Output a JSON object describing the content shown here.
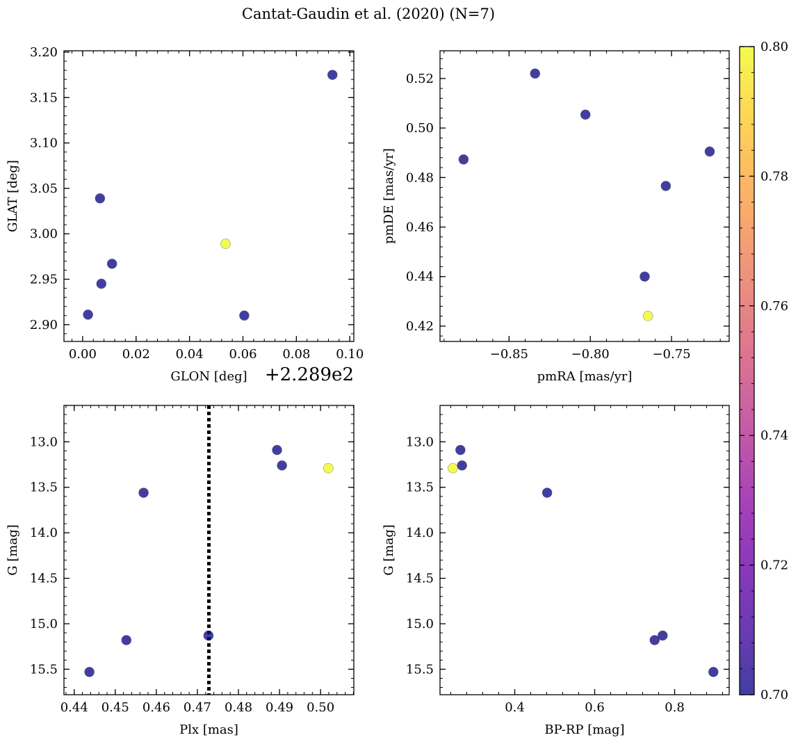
{
  "figure_title": "Cantat-Gaudin et al. (2020) (N=7)",
  "colorbar": {
    "min": 0.7,
    "max": 0.8,
    "ticks": [
      "0.70",
      "0.72",
      "0.74",
      "0.76",
      "0.78",
      "0.80"
    ],
    "colormap": "plasma"
  },
  "chart_data": [
    {
      "type": "scatter",
      "name": "glon-glat",
      "xlabel": "GLON [deg]",
      "ylabel": "GLAT [deg]",
      "x_offset_text": "+2.289e2",
      "xlim": [
        -0.007,
        0.1015
      ],
      "ylim": [
        2.8815,
        3.2015
      ],
      "xticks": [
        0.0,
        0.02,
        0.04,
        0.06,
        0.08,
        0.1
      ],
      "xtick_labels": [
        "0.00",
        "0.02",
        "0.04",
        "0.06",
        "0.08",
        "0.10"
      ],
      "yticks": [
        2.9,
        2.95,
        3.0,
        3.05,
        3.1,
        3.15,
        3.2
      ],
      "ytick_labels": [
        "2.90",
        "2.95",
        "3.00",
        "3.05",
        "3.10",
        "3.15",
        "3.20"
      ],
      "points": [
        {
          "x": 0.002,
          "y": 2.911,
          "c": 0.7
        },
        {
          "x": 0.0065,
          "y": 3.039,
          "c": 0.7
        },
        {
          "x": 0.007,
          "y": 2.945,
          "c": 0.7
        },
        {
          "x": 0.011,
          "y": 2.967,
          "c": 0.7
        },
        {
          "x": 0.0535,
          "y": 2.989,
          "c": 0.8
        },
        {
          "x": 0.0605,
          "y": 2.91,
          "c": 0.7
        },
        {
          "x": 0.0935,
          "y": 3.175,
          "c": 0.7
        }
      ]
    },
    {
      "type": "scatter",
      "name": "pm",
      "xlabel": "pmRA [mas/yr]",
      "ylabel": "pmDE [mas/yr]",
      "xlim": [
        -0.8925,
        -0.7145
      ],
      "ylim": [
        0.4138,
        0.5312
      ],
      "xticks": [
        -0.85,
        -0.8,
        -0.75
      ],
      "xtick_labels": [
        "−0.85",
        "−0.80",
        "−0.75"
      ],
      "yticks": [
        0.42,
        0.44,
        0.46,
        0.48,
        0.5,
        0.52
      ],
      "ytick_labels": [
        "0.42",
        "0.44",
        "0.46",
        "0.48",
        "0.50",
        "0.52"
      ],
      "points": [
        {
          "x": -0.878,
          "y": 0.4873,
          "c": 0.7
        },
        {
          "x": -0.834,
          "y": 0.522,
          "c": 0.7
        },
        {
          "x": -0.803,
          "y": 0.5054,
          "c": 0.7
        },
        {
          "x": -0.7535,
          "y": 0.4766,
          "c": 0.7
        },
        {
          "x": -0.7665,
          "y": 0.44,
          "c": 0.7
        },
        {
          "x": -0.7645,
          "y": 0.4241,
          "c": 0.8
        },
        {
          "x": -0.7265,
          "y": 0.4905,
          "c": 0.7
        }
      ]
    },
    {
      "type": "scatter",
      "name": "plx-g",
      "xlabel": "Plx [mas]",
      "ylabel": "G [mag]",
      "xlim": [
        0.4375,
        0.5081
      ],
      "ylim": [
        15.78,
        12.6
      ],
      "y_inverted": true,
      "vline_x": 0.4728,
      "xticks": [
        0.44,
        0.45,
        0.46,
        0.47,
        0.48,
        0.49,
        0.5
      ],
      "xtick_labels": [
        "0.44",
        "0.45",
        "0.46",
        "0.47",
        "0.48",
        "0.49",
        "0.50"
      ],
      "yticks": [
        13.0,
        13.5,
        14.0,
        14.5,
        15.0,
        15.5
      ],
      "ytick_labels": [
        "13.0",
        "13.5",
        "14.0",
        "14.5",
        "15.0",
        "15.5"
      ],
      "points": [
        {
          "x": 0.4437,
          "y": 15.53,
          "c": 0.7
        },
        {
          "x": 0.4527,
          "y": 15.18,
          "c": 0.7
        },
        {
          "x": 0.4569,
          "y": 13.56,
          "c": 0.7
        },
        {
          "x": 0.4727,
          "y": 15.13,
          "c": 0.7
        },
        {
          "x": 0.4894,
          "y": 13.09,
          "c": 0.7
        },
        {
          "x": 0.4906,
          "y": 13.26,
          "c": 0.7
        },
        {
          "x": 0.5019,
          "y": 13.29,
          "c": 0.8
        }
      ]
    },
    {
      "type": "scatter",
      "name": "color-mag",
      "xlabel": "BP-RP [mag]",
      "ylabel": "G [mag]",
      "xlim": [
        0.213,
        0.9365
      ],
      "ylim": [
        15.78,
        12.6
      ],
      "y_inverted": true,
      "xticks": [
        0.4,
        0.6,
        0.8
      ],
      "xtick_labels": [
        "0.4",
        "0.6",
        "0.8"
      ],
      "yticks": [
        13.0,
        13.5,
        14.0,
        14.5,
        15.0,
        15.5
      ],
      "ytick_labels": [
        "13.0",
        "13.5",
        "14.0",
        "14.5",
        "15.0",
        "15.5"
      ],
      "points": [
        {
          "x": 0.245,
          "y": 13.29,
          "c": 0.8
        },
        {
          "x": 0.264,
          "y": 13.09,
          "c": 0.7
        },
        {
          "x": 0.268,
          "y": 13.26,
          "c": 0.7
        },
        {
          "x": 0.481,
          "y": 13.56,
          "c": 0.7
        },
        {
          "x": 0.75,
          "y": 15.18,
          "c": 0.7
        },
        {
          "x": 0.77,
          "y": 15.13,
          "c": 0.7
        },
        {
          "x": 0.897,
          "y": 15.53,
          "c": 0.7
        }
      ]
    }
  ]
}
